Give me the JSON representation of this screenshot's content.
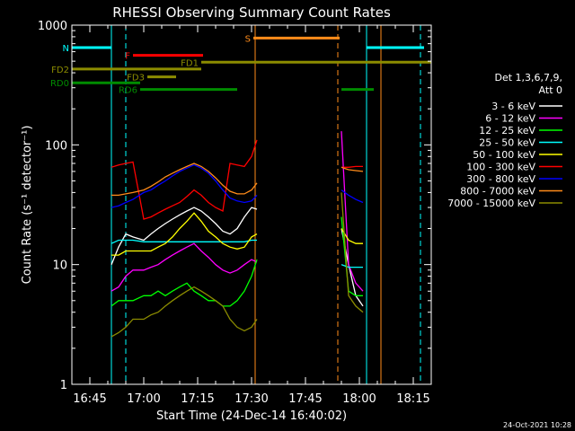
{
  "chart_data": {
    "type": "line",
    "title": "RHESSI Observing Summary Count Rates",
    "xlabel": "Start Time (24-Dec-14 16:40:02)",
    "ylabel": "Count Rate (s⁻¹ detector⁻¹)",
    "y_scale": "log",
    "ylim": [
      1,
      1000
    ],
    "xlim_minutes_after_1640": [
      0,
      100
    ],
    "grid": false,
    "legend_position": "right",
    "x_ticks": [
      {
        "label": "16:45",
        "minute": 5
      },
      {
        "label": "17:00",
        "minute": 20
      },
      {
        "label": "17:15",
        "minute": 35
      },
      {
        "label": "17:30",
        "minute": 50
      },
      {
        "label": "17:45",
        "minute": 65
      },
      {
        "label": "18:00",
        "minute": 80
      },
      {
        "label": "18:15",
        "minute": 95
      }
    ],
    "y_ticks": [
      {
        "label": "1",
        "value": 1
      },
      {
        "label": "10",
        "value": 10
      },
      {
        "label": "100",
        "value": 100
      },
      {
        "label": "1000",
        "value": 1000
      }
    ],
    "legend_header": [
      "Det 1,3,6,7,9,",
      "Att 0"
    ],
    "series": [
      {
        "name": "3 - 6 keV",
        "color": "#ffffff",
        "x": [
          11,
          13,
          15,
          17,
          20,
          22,
          24,
          26,
          28,
          30,
          32,
          34,
          36,
          38,
          40,
          42,
          44,
          46,
          48,
          50,
          51.5,
          75,
          77,
          79,
          81
        ],
        "y": [
          10,
          14,
          18,
          17,
          16,
          18,
          20,
          22,
          24,
          26,
          28,
          30,
          28,
          25,
          22,
          19,
          18,
          20,
          25,
          30,
          29,
          20,
          10,
          5.5,
          4.5
        ]
      },
      {
        "name": "6 - 12 keV",
        "color": "#ff00ff",
        "x": [
          11,
          13,
          15,
          17,
          20,
          22,
          24,
          26,
          28,
          30,
          32,
          34,
          36,
          38,
          40,
          42,
          44,
          46,
          48,
          50,
          51.5,
          75,
          77,
          79,
          81
        ],
        "y": [
          6,
          6.5,
          8,
          9,
          9,
          9.5,
          10,
          11,
          12,
          13,
          14,
          15,
          13,
          11.5,
          10,
          9,
          8.5,
          9,
          10,
          11,
          10.5,
          130,
          10,
          7,
          6
        ]
      },
      {
        "name": "12 - 25 keV",
        "color": "#00ff00",
        "x": [
          11,
          13,
          15,
          17,
          20,
          22,
          24,
          26,
          28,
          30,
          32,
          34,
          36,
          38,
          40,
          42,
          44,
          46,
          48,
          50,
          51.5,
          75,
          77,
          79,
          81
        ],
        "y": [
          4.5,
          5,
          5,
          5,
          5.5,
          5.5,
          6,
          5.5,
          6,
          6.5,
          7,
          6,
          5.5,
          5,
          5,
          4.5,
          4.5,
          5,
          6,
          8,
          11,
          25,
          6,
          5.5,
          5.5
        ]
      },
      {
        "name": "25 - 50 keV",
        "color": "#00ffff",
        "x": [
          11,
          13,
          15,
          17,
          20,
          22,
          24,
          26,
          28,
          30,
          32,
          34,
          36,
          38,
          40,
          42,
          44,
          46,
          48,
          50,
          51.5,
          75,
          77,
          79,
          81
        ],
        "y": [
          15,
          16,
          16,
          16,
          15.5,
          15.5,
          15.5,
          15.5,
          15.5,
          15.5,
          15.5,
          15.5,
          15.5,
          15.5,
          15.5,
          15.5,
          15.5,
          15.5,
          15.5,
          16,
          16,
          10,
          9.5,
          9.5,
          9.5
        ]
      },
      {
        "name": "50 - 100 keV",
        "color": "#ffff00",
        "x": [
          11,
          13,
          15,
          17,
          20,
          22,
          24,
          26,
          28,
          30,
          32,
          34,
          36,
          38,
          40,
          42,
          44,
          46,
          48,
          50,
          51.5,
          75,
          77,
          79,
          81
        ],
        "y": [
          12,
          12,
          13,
          13,
          13,
          13,
          14,
          15,
          17,
          20,
          23,
          27,
          23,
          19,
          17,
          15,
          14,
          13.5,
          14,
          17,
          18,
          20,
          16,
          15,
          15
        ]
      },
      {
        "name": "100 - 300 keV",
        "color": "#ff0000",
        "x": [
          11,
          13,
          15,
          17,
          20,
          22,
          24,
          26,
          28,
          30,
          32,
          34,
          36,
          38,
          40,
          42,
          44,
          46,
          48,
          50,
          51.5,
          75,
          77,
          79,
          81
        ],
        "y": [
          65,
          68,
          70,
          72,
          24,
          25,
          27,
          29,
          31,
          33,
          37,
          42,
          38,
          33,
          30,
          28,
          70,
          68,
          66,
          80,
          110,
          65,
          65,
          66,
          66
        ]
      },
      {
        "name": "300 - 800 keV",
        "color": "#0000ff",
        "x": [
          11,
          13,
          15,
          17,
          20,
          22,
          24,
          26,
          28,
          30,
          32,
          34,
          36,
          38,
          40,
          42,
          44,
          46,
          48,
          50,
          51.5,
          75,
          77,
          79,
          81
        ],
        "y": [
          30,
          31,
          33,
          35,
          40,
          42,
          46,
          50,
          55,
          60,
          64,
          68,
          64,
          58,
          50,
          42,
          36,
          34,
          33,
          34,
          38,
          42,
          38,
          35,
          33
        ]
      },
      {
        "name": "800 - 7000 keV",
        "color": "#ff8c1a",
        "x": [
          11,
          13,
          15,
          17,
          20,
          22,
          24,
          26,
          28,
          30,
          32,
          34,
          36,
          38,
          40,
          42,
          44,
          46,
          48,
          50,
          51.5,
          75,
          77,
          79,
          81
        ],
        "y": [
          38,
          38,
          39,
          40,
          42,
          45,
          49,
          54,
          58,
          62,
          66,
          70,
          66,
          60,
          53,
          46,
          41,
          39,
          39,
          42,
          48,
          65,
          62,
          61,
          60
        ]
      },
      {
        "name": "7000 - 15000 keV",
        "color": "#8c8c00",
        "x": [
          11,
          13,
          15,
          17,
          20,
          22,
          24,
          26,
          28,
          30,
          32,
          34,
          36,
          38,
          40,
          42,
          44,
          46,
          48,
          50,
          51.5,
          75,
          77,
          79,
          81
        ],
        "y": [
          2.5,
          2.7,
          3,
          3.5,
          3.5,
          3.8,
          4,
          4.5,
          5,
          5.5,
          6,
          6.5,
          6,
          5.5,
          5,
          4.5,
          3.5,
          3,
          2.8,
          3,
          3.5,
          40,
          5.5,
          4.5,
          4
        ]
      }
    ],
    "flags": [
      {
        "label": "N",
        "color": "#00ffff",
        "value": 650,
        "segments": [
          [
            0,
            11
          ],
          [
            82,
            98
          ]
        ]
      },
      {
        "label": "S",
        "color": "#ff8c1a",
        "value": 780,
        "segments": [
          [
            50.5,
            74.5
          ]
        ]
      },
      {
        "label": "F",
        "color": "#ff0000",
        "value": 560,
        "segments": [
          [
            17,
            36.5
          ]
        ]
      },
      {
        "label": "FD1",
        "color": "#8c8c00",
        "value": 490,
        "segments": [
          [
            36,
            100
          ]
        ]
      },
      {
        "label": "FD2",
        "color": "#8c8c00",
        "value": 430,
        "segments": [
          [
            0,
            36
          ]
        ]
      },
      {
        "label": "FD3",
        "color": "#8c8c00",
        "value": 370,
        "segments": [
          [
            21,
            29
          ]
        ]
      },
      {
        "label": "RD0",
        "color": "#008c00",
        "value": 330,
        "segments": [
          [
            0,
            19
          ]
        ]
      },
      {
        "label": "RD6",
        "color": "#008c00",
        "value": 290,
        "segments": [
          [
            19,
            46
          ],
          [
            75,
            84
          ]
        ]
      }
    ],
    "vertical_markers": [
      {
        "minute": 0,
        "color": "#00ffff",
        "style": "solid"
      },
      {
        "minute": 11,
        "color": "#00ffff",
        "style": "solid"
      },
      {
        "minute": 15,
        "color": "#00ffff",
        "style": "dashed"
      },
      {
        "minute": 82,
        "color": "#00ffff",
        "style": "solid"
      },
      {
        "minute": 97,
        "color": "#00ffff",
        "style": "dashed"
      },
      {
        "minute": 51,
        "color": "#ff8c1a",
        "style": "solid"
      },
      {
        "minute": 74,
        "color": "#ff8c1a",
        "style": "dashed"
      },
      {
        "minute": 86,
        "color": "#ff8c1a",
        "style": "solid"
      }
    ]
  },
  "footer": {
    "timestamp": "24-Oct-2021 10:28"
  }
}
